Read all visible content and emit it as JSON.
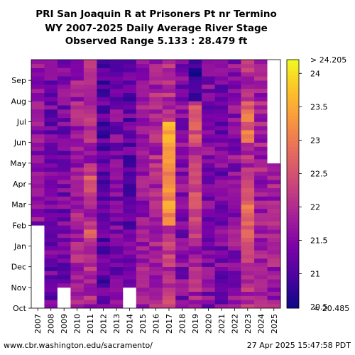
{
  "chart_data": {
    "type": "heatmap",
    "title_lines": [
      "PRI San Joaquin R at Prisoners Pt nr Termino",
      "WY 2007-2025 Daily Average River Stage",
      "Observed Range 5.133 : 28.479 ft"
    ],
    "x_categories": [
      "2007",
      "2008",
      "2009",
      "2010",
      "2011",
      "2012",
      "2013",
      "2014",
      "2015",
      "2016",
      "2017",
      "2018",
      "2019",
      "2020",
      "2021",
      "2022",
      "2023",
      "2024",
      "2025"
    ],
    "y_ticks": [
      "Oct",
      "Nov",
      "Dec",
      "Jan",
      "Feb",
      "Mar",
      "Apr",
      "May",
      "Jun",
      "Jul",
      "Aug",
      "Sep"
    ],
    "colorbar": {
      "min": 20.485,
      "max": 24.205,
      "ticks": [
        21,
        21.5,
        22,
        22.5,
        23,
        23.5,
        24
      ],
      "tick_labels": [
        "21",
        "21.5",
        "22",
        "22.5",
        "23",
        "23.5",
        "24"
      ],
      "min_label": "< 20.485",
      "max_label": "> 24.205",
      "bottom_label": "20.5",
      "colormap": "plasma"
    },
    "notable_values": [
      {
        "water_year": "2017",
        "months": [
          "Feb",
          "Mar",
          "Apr",
          "May",
          "Jun"
        ],
        "approx_stage_ft": 23.3
      },
      {
        "water_year": "2023",
        "months": [
          "Jan",
          "Feb",
          "Mar",
          "Jun",
          "Jul"
        ],
        "approx_stage_ft": 22.8
      },
      {
        "water_year": "2011",
        "months": [
          "Jan",
          "Mar",
          "Apr"
        ],
        "approx_stage_ft": 22.4
      },
      {
        "water_year": "2019",
        "months": [
          "Jan",
          "Feb",
          "Mar",
          "Apr",
          "Jun",
          "Jul"
        ],
        "approx_stage_ft": 22.4
      },
      {
        "water_year": "2019",
        "months": [
          "Aug",
          "Sep"
        ],
        "approx_stage_ft": 20.8
      },
      {
        "water_year": "2025",
        "months": [
          "Oct",
          "Nov",
          "Dec",
          "Jan",
          "Feb",
          "Mar"
        ],
        "approx_stage_ft": 21.8
      },
      {
        "water_year": "2012",
        "months": [
          "Jan",
          "Feb",
          "Mar",
          "Apr",
          "May",
          "Jun",
          "Jul",
          "Aug",
          "Sep"
        ],
        "approx_stage_ft": 21.1
      }
    ],
    "missing_data": [
      {
        "water_year": "2007",
        "months": [
          "Oct",
          "Nov",
          "Dec",
          "Jan"
        ]
      },
      {
        "water_year": "2009",
        "months": [
          "Oct"
        ]
      },
      {
        "water_year": "2014",
        "months": [
          "Oct"
        ]
      },
      {
        "water_year": "2025",
        "months": [
          "May",
          "Jun",
          "Jul",
          "Aug",
          "Sep"
        ]
      }
    ]
  },
  "footer": {
    "url": "www.cbr.washington.edu/sacramento/",
    "timestamp": "27 Apr 2025 15:47:58 PDT"
  }
}
